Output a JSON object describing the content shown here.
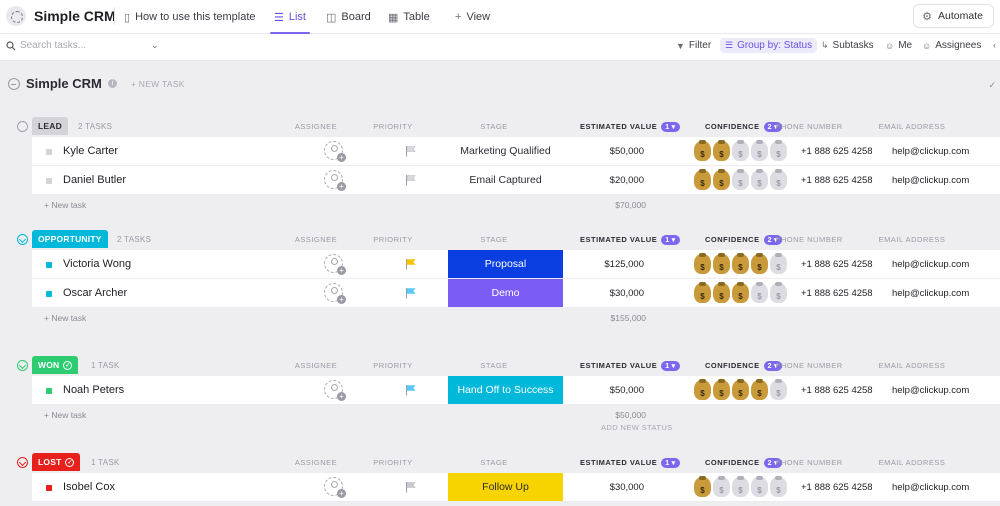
{
  "app": {
    "title": "Simple CRM"
  },
  "tabs": [
    {
      "label": "How to use this template",
      "icon": "document-icon"
    },
    {
      "label": "List",
      "icon": "list-icon",
      "active": true
    },
    {
      "label": "Board",
      "icon": "board-icon"
    },
    {
      "label": "Table",
      "icon": "table-icon"
    },
    {
      "label": "View",
      "icon": "plus-icon"
    }
  ],
  "automate_label": "Automate",
  "toolbar": {
    "search_placeholder": "Search tasks...",
    "filter": "Filter",
    "group_by": "Group by: Status",
    "subtasks": "Subtasks",
    "me": "Me",
    "assignees": "Assignees"
  },
  "list": {
    "title": "Simple CRM",
    "new_task": "+ NEW TASK"
  },
  "columns": {
    "assignee": "ASSIGNEE",
    "priority": "PRIORITY",
    "stage": "STAGE",
    "estimated_value": "ESTIMATED VALUE",
    "confidence": "CONFIDENCE",
    "phone": "PHONE NUMBER",
    "email": "EMAIL ADDRESS",
    "est_badge": "1",
    "conf_badge": "2"
  },
  "groups": [
    {
      "status": "LEAD",
      "count": "2 TASKS",
      "color": "#d3d3d8",
      "text_color": "#2b2b33",
      "tasks": [
        {
          "name": "Kyle Carter",
          "stage": "Marketing Qualified",
          "stage_color": "",
          "priority_color": "#d8d8de",
          "value": "$50,000",
          "confidence": 2,
          "phone": "+1 888 625 4258",
          "email": "help@clickup.com"
        },
        {
          "name": "Daniel Butler",
          "stage": "Email Captured",
          "stage_color": "",
          "priority_color": "#d8d8de",
          "value": "$20,000",
          "confidence": 2,
          "phone": "+1 888 625 4258",
          "email": "help@clickup.com"
        }
      ],
      "new_task": "+ New task",
      "sum": "$70,000"
    },
    {
      "status": "OPPORTUNITY",
      "count": "2 TASKS",
      "color": "#00b8d9",
      "text_color": "#ffffff",
      "tasks": [
        {
          "name": "Victoria Wong",
          "stage": "Proposal",
          "stage_color": "#0a3ee0",
          "priority_color": "#f5c400",
          "value": "$125,000",
          "confidence": 4,
          "phone": "+1 888 625 4258",
          "email": "help@clickup.com"
        },
        {
          "name": "Oscar Archer",
          "stage": "Demo",
          "stage_color": "#7b5cf5",
          "priority_color": "#5bc8f5",
          "value": "$30,000",
          "confidence": 3,
          "phone": "+1 888 625 4258",
          "email": "help@clickup.com"
        }
      ],
      "new_task": "+ New task",
      "sum": "$155,000"
    },
    {
      "status": "WON",
      "count": "1 TASK",
      "color": "#2ecc71",
      "text_color": "#ffffff",
      "tasks": [
        {
          "name": "Noah Peters",
          "stage": "Hand Off to Success",
          "stage_color": "#00b8d9",
          "priority_color": "#5bc8f5",
          "value": "$50,000",
          "confidence": 4,
          "phone": "+1 888 625 4258",
          "email": "help@clickup.com"
        }
      ],
      "new_task": "+ New task",
      "sum": "$50,000"
    },
    {
      "status": "LOST",
      "count": "1 TASK",
      "color": "#e8201b",
      "text_color": "#ffffff",
      "tasks": [
        {
          "name": "Isobel Cox",
          "stage": "Follow Up",
          "stage_color": "#f7d400",
          "priority_color": "#c9c9d0",
          "value": "$30,000",
          "confidence": 1,
          "phone": "+1 888 625 4258",
          "email": "help@clickup.com"
        }
      ]
    }
  ],
  "add_new_status": "ADD NEW STATUS"
}
